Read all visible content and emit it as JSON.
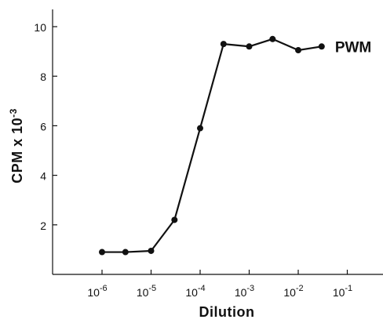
{
  "chart_data": {
    "type": "line",
    "xlabel": "Dilution",
    "ylabel": "CPM x 10",
    "ylabel_exponent": "-3",
    "x_scale": "log",
    "ylim": [
      0,
      10.5
    ],
    "x_ticks": [
      {
        "value": 1e-06,
        "mantissa": "10",
        "exponent": "-6"
      },
      {
        "value": 1e-05,
        "mantissa": "10",
        "exponent": "-5"
      },
      {
        "value": 0.0001,
        "mantissa": "10",
        "exponent": "-4"
      },
      {
        "value": 0.001,
        "mantissa": "10",
        "exponent": "-3"
      },
      {
        "value": 0.01,
        "mantissa": "10",
        "exponent": "-2"
      },
      {
        "value": 0.1,
        "mantissa": "10",
        "exponent": "-1"
      }
    ],
    "y_ticks": [
      2,
      4,
      6,
      8,
      10
    ],
    "series": [
      {
        "name": "PWM",
        "points": [
          {
            "x": 1e-06,
            "y": 0.9
          },
          {
            "x": 3e-06,
            "y": 0.9
          },
          {
            "x": 1e-05,
            "y": 0.95
          },
          {
            "x": 3e-05,
            "y": 2.2
          },
          {
            "x": 0.0001,
            "y": 5.9
          },
          {
            "x": 0.0003,
            "y": 9.3
          },
          {
            "x": 0.001,
            "y": 9.2
          },
          {
            "x": 0.003,
            "y": 9.5
          },
          {
            "x": 0.01,
            "y": 9.05
          },
          {
            "x": 0.03,
            "y": 9.2
          }
        ]
      }
    ]
  }
}
